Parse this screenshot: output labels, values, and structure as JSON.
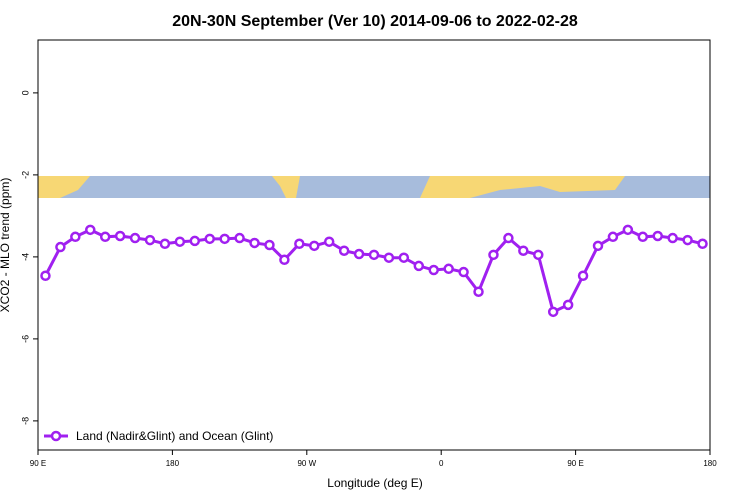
{
  "chart_data": {
    "type": "line",
    "title": "20N-30N September (Ver 10)   2014-09-06 to 2022-02-28",
    "x_label": "Longitude (deg E)",
    "y_label": "XCO2 - MLO trend (ppm)",
    "x": [
      95,
      105,
      115,
      125,
      135,
      145,
      155,
      165,
      175,
      185,
      195,
      205,
      215,
      225,
      235,
      245,
      255,
      265,
      275,
      285,
      295,
      305,
      315,
      325,
      335,
      345,
      355,
      365,
      375,
      385,
      395,
      405,
      415,
      425,
      435,
      445,
      455,
      465,
      475,
      485,
      495,
      505,
      515,
      525,
      535
    ],
    "series": [
      {
        "name": "Land (Nadir&Glint) and Ocean (Glint)",
        "color": "#a020f0",
        "values": [
          -4.46,
          -3.76,
          -3.51,
          -3.34,
          -3.51,
          -3.49,
          -3.54,
          -3.59,
          -3.68,
          -3.63,
          -3.61,
          -3.56,
          -3.56,
          -3.54,
          -3.66,
          -3.71,
          -4.07,
          -3.68,
          -3.73,
          -3.63,
          -3.85,
          -3.93,
          -3.95,
          -4.02,
          -4.02,
          -4.22,
          -4.32,
          -4.29,
          -4.37,
          -4.85,
          -3.95,
          -3.54,
          -3.85,
          -3.95,
          -5.34,
          -5.17,
          -4.46,
          -3.73,
          -3.51,
          -3.34,
          -3.51,
          -3.49,
          -3.54,
          -3.59,
          -3.68
        ]
      }
    ],
    "xlim": [
      90,
      540
    ],
    "xticks": [
      {
        "value": 90,
        "label": "90 E"
      },
      180,
      {
        "value": 270,
        "label": "90 W"
      },
      {
        "value": 360,
        "label": "0"
      },
      {
        "value": 450,
        "label": "90 E"
      },
      {
        "value": 540,
        "label": "180"
      }
    ],
    "ylim": [
      -8.71,
      1.29
    ],
    "yticks": [
      0,
      -2,
      -4,
      -6,
      -8
    ],
    "legend": "bottom-left"
  }
}
